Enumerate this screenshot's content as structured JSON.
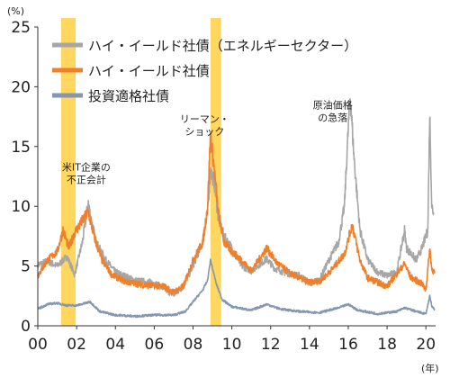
{
  "chart_data": {
    "type": "line",
    "title": "",
    "xlabel": "(年)",
    "ylabel": "(%)",
    "xlim": [
      2000,
      2020.5
    ],
    "ylim": [
      0,
      25
    ],
    "x_ticks": [
      "00",
      "02",
      "04",
      "06",
      "08",
      "10",
      "12",
      "14",
      "16",
      "18",
      "20"
    ],
    "x_tick_values": [
      2000,
      2002,
      2004,
      2006,
      2008,
      2010,
      2012,
      2014,
      2016,
      2018,
      2020
    ],
    "y_ticks": [
      0,
      5,
      10,
      15,
      20,
      25
    ],
    "grid": false,
    "legend_position": "top-left",
    "highlight_periods": [
      {
        "start": 2001.2,
        "end": 2001.95
      },
      {
        "start": 2008.9,
        "end": 2009.45
      }
    ],
    "annotations": [
      {
        "lines": [
          "米IT企業の",
          "不正会計"
        ],
        "x": 2002.5,
        "y": 13.0
      },
      {
        "lines": [
          "リーマン・",
          "ショック"
        ],
        "x": 2008.6,
        "y": 17.0
      },
      {
        "lines": [
          "原油価格",
          "の急落"
        ],
        "x": 2015.2,
        "y": 18.2
      }
    ],
    "series": [
      {
        "name": "ハイ・イールド社債（エネルギーセクター）",
        "color": "#a6a6a6",
        "x": [
          2000.0,
          2000.5,
          2001.0,
          2001.5,
          2001.9,
          2002.3,
          2002.6,
          2002.8,
          2003.0,
          2003.5,
          2004.0,
          2005.0,
          2006.0,
          2007.0,
          2007.5,
          2008.0,
          2008.5,
          2008.75,
          2008.9,
          2009.1,
          2009.3,
          2009.6,
          2010.0,
          2010.5,
          2011.0,
          2011.8,
          2012.2,
          2012.8,
          2013.5,
          2014.0,
          2014.5,
          2015.0,
          2015.5,
          2015.8,
          2016.0,
          2016.1,
          2016.3,
          2016.6,
          2017.0,
          2017.5,
          2018.0,
          2018.5,
          2018.9,
          2019.0,
          2019.5,
          2019.8,
          2020.0,
          2020.1,
          2020.2,
          2020.3,
          2020.4
        ],
        "y": [
          5.1,
          5.4,
          5.0,
          5.8,
          4.3,
          7.0,
          10.3,
          8.5,
          7.0,
          5.5,
          4.5,
          3.8,
          3.6,
          2.6,
          3.3,
          5.0,
          7.0,
          9.5,
          13.0,
          12.0,
          9.0,
          7.5,
          6.5,
          5.0,
          4.6,
          5.6,
          4.8,
          4.4,
          4.2,
          3.6,
          3.8,
          5.5,
          7.0,
          10.0,
          16.5,
          19.3,
          14.0,
          8.0,
          5.5,
          4.5,
          4.2,
          4.5,
          8.0,
          6.5,
          5.5,
          6.5,
          7.5,
          8.0,
          18.0,
          10.0,
          9.5
        ]
      },
      {
        "name": "ハイ・イールド社債",
        "color": "#f07f2a",
        "x": [
          2000.0,
          2000.5,
          2001.0,
          2001.3,
          2001.6,
          2001.9,
          2002.3,
          2002.6,
          2002.9,
          2003.3,
          2003.8,
          2004.5,
          2005.5,
          2006.5,
          2007.0,
          2007.5,
          2008.0,
          2008.5,
          2008.75,
          2008.9,
          2009.1,
          2009.3,
          2009.6,
          2010.0,
          2010.5,
          2011.0,
          2011.8,
          2012.3,
          2013.0,
          2014.0,
          2014.6,
          2015.2,
          2015.8,
          2016.0,
          2016.2,
          2016.6,
          2017.0,
          2018.0,
          2018.9,
          2019.2,
          2019.8,
          2020.0,
          2020.2,
          2020.3,
          2020.45
        ],
        "y": [
          4.2,
          5.5,
          6.2,
          8.0,
          6.5,
          7.8,
          8.8,
          9.5,
          7.5,
          5.5,
          4.3,
          3.7,
          3.4,
          3.3,
          2.8,
          3.3,
          5.5,
          7.0,
          10.0,
          16.0,
          13.0,
          9.5,
          7.0,
          6.2,
          5.5,
          4.6,
          6.5,
          5.3,
          4.4,
          3.6,
          3.8,
          4.8,
          6.0,
          7.2,
          8.5,
          5.5,
          4.0,
          3.3,
          5.2,
          4.1,
          3.5,
          3.0,
          6.5,
          4.8,
          4.4
        ]
      },
      {
        "name": "投資適格社債",
        "color": "#8496b0",
        "x": [
          2000.0,
          2000.5,
          2001.0,
          2001.5,
          2002.0,
          2002.7,
          2003.2,
          2004.0,
          2005.0,
          2006.0,
          2007.0,
          2007.6,
          2008.0,
          2008.5,
          2008.75,
          2008.9,
          2009.2,
          2009.5,
          2010.0,
          2011.0,
          2011.8,
          2012.5,
          2013.5,
          2014.5,
          2015.5,
          2016.0,
          2016.5,
          2017.5,
          2018.5,
          2018.9,
          2019.5,
          2020.0,
          2020.2,
          2020.3,
          2020.45
        ],
        "y": [
          1.4,
          1.8,
          1.9,
          1.7,
          1.7,
          2.0,
          1.2,
          0.9,
          0.8,
          0.9,
          0.9,
          1.2,
          2.0,
          3.0,
          3.8,
          5.5,
          3.5,
          2.2,
          1.6,
          1.3,
          1.8,
          1.4,
          1.2,
          1.1,
          1.5,
          1.8,
          1.3,
          1.0,
          1.2,
          1.5,
          1.2,
          1.0,
          2.5,
          1.6,
          1.4
        ]
      }
    ]
  }
}
